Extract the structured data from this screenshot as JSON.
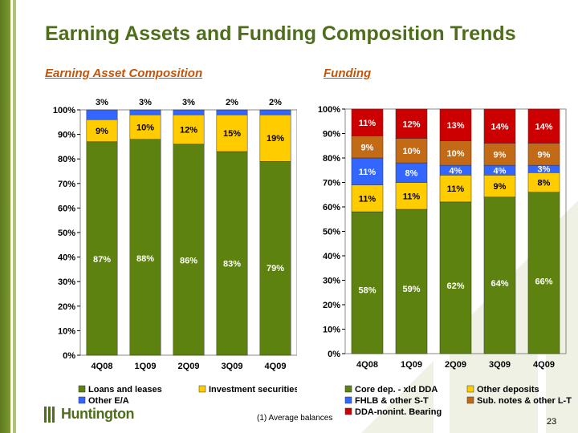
{
  "header": {
    "title": "Earning Assets and Funding Composition Trends",
    "left_subtitle": "Earning Asset Composition",
    "right_subtitle": "Funding"
  },
  "footer": {
    "logo_text": "Huntington",
    "footnote": "(1)  Average balances",
    "page_number": "23"
  },
  "colors": {
    "title_green": "#4e6e1c",
    "subtitle_orange": "#c0560c",
    "green": "#5e820f",
    "yellow": "#ffcc00",
    "blue": "#3366ff",
    "brown": "#c26a15",
    "red": "#cc0000"
  },
  "chart_data": [
    {
      "type": "bar",
      "stacked": true,
      "title": "Earning Asset Composition",
      "categories": [
        "4Q08",
        "1Q09",
        "2Q09",
        "3Q09",
        "4Q09"
      ],
      "yticks": [
        "0%",
        "10%",
        "20%",
        "30%",
        "40%",
        "50%",
        "60%",
        "70%",
        "80%",
        "90%",
        "100%"
      ],
      "ylim": [
        0,
        100
      ],
      "legend_position": "bottom",
      "series": [
        {
          "name": "Loans and leases",
          "color": "#5e820f",
          "values": [
            87,
            88,
            86,
            83,
            79
          ],
          "labels": [
            "87%",
            "88%",
            "86%",
            "83%",
            "79%"
          ]
        },
        {
          "name": "Investment securities",
          "color": "#ffcc00",
          "values": [
            9,
            10,
            12,
            15,
            19
          ],
          "labels": [
            "9%",
            "10%",
            "12%",
            "15%",
            "19%"
          ]
        },
        {
          "name": "Other E/A",
          "color": "#3366ff",
          "values": [
            3,
            3,
            3,
            2,
            2
          ],
          "labels": [
            "3%",
            "3%",
            "3%",
            "2%",
            "2%"
          ]
        }
      ]
    },
    {
      "type": "bar",
      "stacked": true,
      "title": "Funding",
      "categories": [
        "4Q08",
        "1Q09",
        "2Q09",
        "3Q09",
        "4Q09"
      ],
      "yticks": [
        "0%",
        "10%",
        "20%",
        "30%",
        "40%",
        "50%",
        "60%",
        "70%",
        "80%",
        "90%",
        "100%"
      ],
      "ylim": [
        0,
        100
      ],
      "legend_position": "bottom",
      "series": [
        {
          "name": "Core dep. - xld DDA",
          "color": "#5e820f",
          "values": [
            58,
            59,
            62,
            64,
            66
          ],
          "labels": [
            "58%",
            "59%",
            "62%",
            "64%",
            "66%"
          ]
        },
        {
          "name": "Other deposits",
          "color": "#ffcc00",
          "values": [
            11,
            11,
            11,
            9,
            8
          ],
          "labels": [
            "11%",
            "11%",
            "11%",
            "9%",
            "8%"
          ]
        },
        {
          "name": "FHLB & other S-T",
          "color": "#3366ff",
          "values": [
            11,
            8,
            4,
            4,
            3
          ],
          "labels": [
            "11%",
            "8%",
            "4%",
            "4%",
            "3%"
          ]
        },
        {
          "name": "Sub. notes & other L-T",
          "color": "#c26a15",
          "values": [
            9,
            10,
            10,
            9,
            9
          ],
          "labels": [
            "9%",
            "10%",
            "10%",
            "9%",
            "9%"
          ]
        },
        {
          "name": "DDA-nonint. Bearing",
          "color": "#cc0000",
          "values": [
            11,
            12,
            13,
            14,
            14
          ],
          "labels": [
            "11%",
            "12%",
            "13%",
            "14%",
            "14%"
          ]
        }
      ]
    }
  ]
}
